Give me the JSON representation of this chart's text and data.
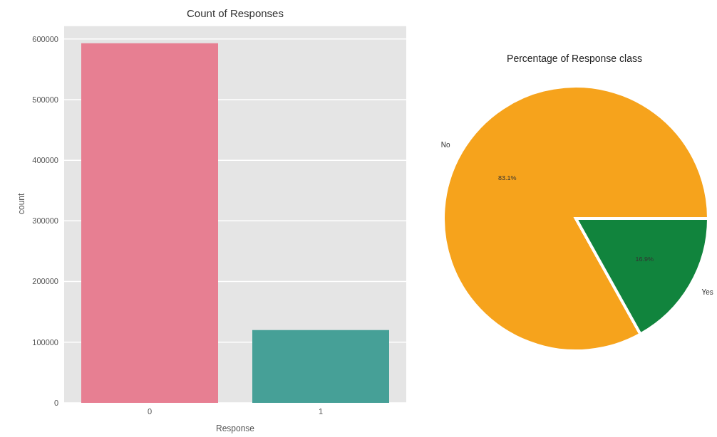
{
  "chart_data": [
    {
      "type": "bar",
      "title": "Count of Responses",
      "xlabel": "Response",
      "ylabel": "count",
      "categories": [
        "0",
        "1"
      ],
      "values": [
        593000,
        120000
      ],
      "colors": [
        "#e77f92",
        "#46a097"
      ],
      "ylim": [
        0,
        622000
      ],
      "yticks": [
        0,
        100000,
        200000,
        300000,
        400000,
        500000,
        600000
      ],
      "grid": "y"
    },
    {
      "type": "pie",
      "title": "Percentage of Response class",
      "categories": [
        "No",
        "Yes"
      ],
      "values": [
        83.1,
        16.9
      ],
      "colors": [
        "#f6a31c",
        "#11843d"
      ],
      "value_labels": [
        "83.1%",
        "16.9%"
      ]
    }
  ]
}
